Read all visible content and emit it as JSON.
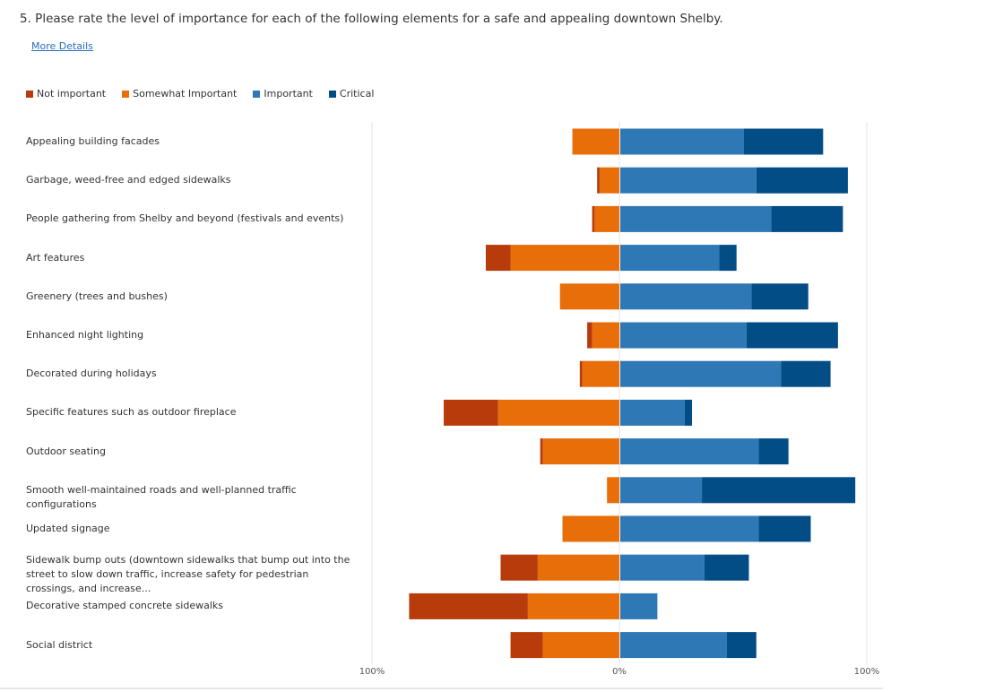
{
  "question": {
    "title": "5. Please rate the level of importance for each of the following elements for a safe and appealing downtown Shelby.",
    "more_details": "More Details"
  },
  "chart_data": {
    "type": "bar",
    "orientation": "horizontal",
    "stacking": "diverging",
    "legend_position": "top-left",
    "categories": [
      "Appealing building facades",
      "Garbage, weed-free and edged sidewalks",
      "People gathering from Shelby and beyond (festivals and events)",
      "Art features",
      "Greenery (trees and bushes)",
      "Enhanced night lighting",
      "Decorated during holidays",
      "Specific features such as outdoor fireplace",
      "Outdoor seating",
      "Smooth well-maintained roads and well-planned traffic configurations",
      "Updated signage",
      "Sidewalk bump outs (downtown sidewalks that bump out into the street to slow down traffic, increase safety for pedestrian crossings, and increase...",
      "Decorative stamped concrete sidewalks",
      "Social district"
    ],
    "series": [
      {
        "name": "Not important",
        "color": "#b83c0b",
        "side": "negative",
        "values": [
          0,
          1,
          1,
          10,
          0,
          2,
          1,
          22,
          1,
          0,
          0,
          15,
          48,
          13
        ]
      },
      {
        "name": "Somewhat Important",
        "color": "#e86e0a",
        "side": "negative",
        "values": [
          19,
          8,
          10,
          44,
          24,
          11,
          15,
          49,
          31,
          5,
          23,
          33,
          37,
          31
        ]
      },
      {
        "name": "Important",
        "color": "#2e78b5",
        "side": "positive",
        "values": [
          50,
          55,
          61,
          40,
          53,
          51,
          65,
          26,
          56,
          33,
          56,
          34,
          15,
          43
        ]
      },
      {
        "name": "Critical",
        "color": "#034d87",
        "side": "positive",
        "values": [
          32,
          37,
          29,
          7,
          23,
          37,
          20,
          3,
          12,
          62,
          21,
          18,
          0,
          12
        ]
      }
    ],
    "xlim": [
      -100,
      100
    ],
    "tick_labels": [
      "100%",
      "0%",
      "100%"
    ]
  }
}
